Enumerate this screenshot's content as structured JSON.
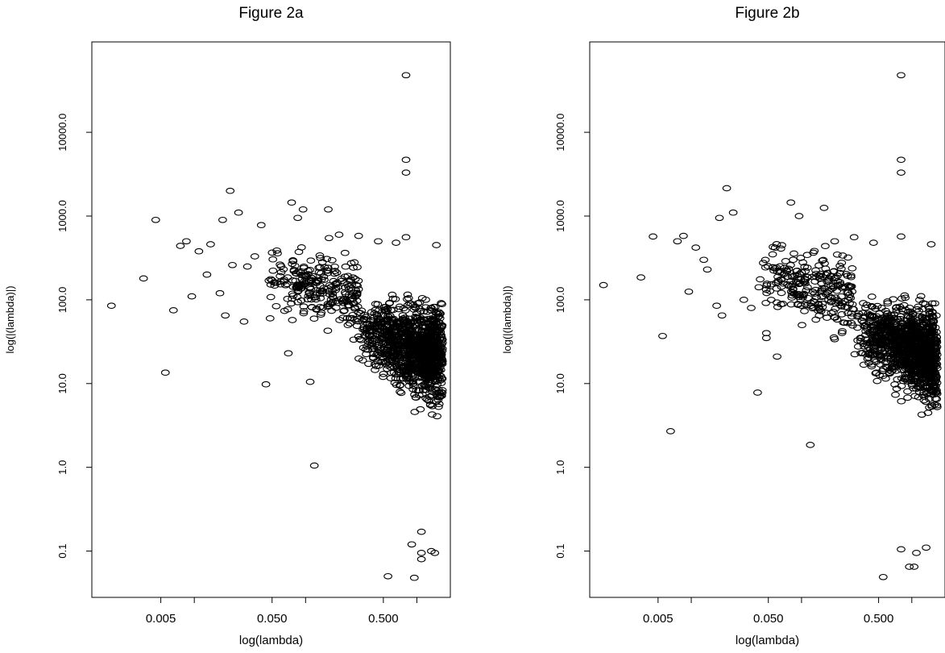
{
  "chart_data": [
    {
      "type": "scatter",
      "title": "Figure 2a",
      "xlabel": "log(lambda)",
      "ylabel": "log(|(lambda)|)",
      "xscale": "log",
      "yscale": "log",
      "xlim": [
        0.0012,
        2.0
      ],
      "ylim": [
        0.028,
        120000
      ],
      "xticks": [
        0.001,
        0.005,
        0.01,
        0.05,
        0.1,
        0.5,
        1.0
      ],
      "xtick_labels": [
        {
          "value": 0.005,
          "label": "0.005"
        },
        {
          "value": 0.05,
          "label": "0.050"
        },
        {
          "value": 0.5,
          "label": "0.500"
        }
      ],
      "yticks": [
        {
          "value": 0.1,
          "label": "0.1"
        },
        {
          "value": 1,
          "label": "1.0"
        },
        {
          "value": 10,
          "label": "10.0"
        },
        {
          "value": 100,
          "label": "100.0"
        },
        {
          "value": 1000,
          "label": "1000.0"
        },
        {
          "value": 10000,
          "label": "10000.0"
        }
      ],
      "grid": false,
      "marker": "open-circle",
      "highlighted_points": [
        {
          "x": 0.0018,
          "y": 85
        },
        {
          "x": 0.0035,
          "y": 180
        },
        {
          "x": 0.0045,
          "y": 900
        },
        {
          "x": 0.0055,
          "y": 13.5
        },
        {
          "x": 0.0065,
          "y": 75
        },
        {
          "x": 0.0075,
          "y": 440
        },
        {
          "x": 0.0085,
          "y": 500
        },
        {
          "x": 0.0095,
          "y": 110
        },
        {
          "x": 0.011,
          "y": 380
        },
        {
          "x": 0.013,
          "y": 200
        },
        {
          "x": 0.014,
          "y": 460
        },
        {
          "x": 0.017,
          "y": 120
        },
        {
          "x": 0.018,
          "y": 900
        },
        {
          "x": 0.019,
          "y": 65
        },
        {
          "x": 0.021,
          "y": 2000
        },
        {
          "x": 0.022,
          "y": 260
        },
        {
          "x": 0.025,
          "y": 1100
        },
        {
          "x": 0.028,
          "y": 55
        },
        {
          "x": 0.03,
          "y": 250
        },
        {
          "x": 0.035,
          "y": 330
        },
        {
          "x": 0.04,
          "y": 780
        },
        {
          "x": 0.044,
          "y": 9.8
        },
        {
          "x": 0.048,
          "y": 60
        },
        {
          "x": 0.055,
          "y": 160
        },
        {
          "x": 0.07,
          "y": 23
        },
        {
          "x": 0.075,
          "y": 1450
        },
        {
          "x": 0.085,
          "y": 950
        },
        {
          "x": 0.095,
          "y": 1200
        },
        {
          "x": 0.11,
          "y": 10.5
        },
        {
          "x": 0.12,
          "y": 1.05
        },
        {
          "x": 0.16,
          "y": 1200
        },
        {
          "x": 0.2,
          "y": 600
        },
        {
          "x": 0.3,
          "y": 580
        },
        {
          "x": 0.45,
          "y": 500
        },
        {
          "x": 0.55,
          "y": 0.05
        },
        {
          "x": 0.65,
          "y": 480
        },
        {
          "x": 0.8,
          "y": 48000
        },
        {
          "x": 0.8,
          "y": 4700
        },
        {
          "x": 0.8,
          "y": 3300
        },
        {
          "x": 0.8,
          "y": 560
        },
        {
          "x": 0.95,
          "y": 0.048
        },
        {
          "x": 1.1,
          "y": 0.08
        },
        {
          "x": 1.1,
          "y": 0.095
        },
        {
          "x": 1.35,
          "y": 0.1
        },
        {
          "x": 1.45,
          "y": 0.095
        },
        {
          "x": 1.5,
          "y": 450
        },
        {
          "x": 1.1,
          "y": 0.17
        },
        {
          "x": 0.9,
          "y": 0.12
        }
      ],
      "dense_cloud": [
        {
          "x_range": [
            0.04,
            0.3
          ],
          "y_range": [
            1.5,
            900
          ],
          "density": "moderate"
        },
        {
          "x_range": [
            0.3,
            1.7
          ],
          "y_range": [
            0.3,
            500
          ],
          "density": "very high"
        }
      ]
    },
    {
      "type": "scatter",
      "title": "Figure 2b",
      "xlabel": "log(lambda)",
      "ylabel": "log(|(lambda)|)",
      "xscale": "log",
      "yscale": "log",
      "xlim": [
        0.0012,
        2.0
      ],
      "ylim": [
        0.028,
        120000
      ],
      "xticks": [
        0.001,
        0.005,
        0.01,
        0.05,
        0.1,
        0.5,
        1.0
      ],
      "xtick_labels": [
        {
          "value": 0.005,
          "label": "0.005"
        },
        {
          "value": 0.05,
          "label": "0.050"
        },
        {
          "value": 0.5,
          "label": "0.500"
        }
      ],
      "yticks": [
        {
          "value": 0.1,
          "label": "0.1"
        },
        {
          "value": 1,
          "label": "1.0"
        },
        {
          "value": 10,
          "label": "10.0"
        },
        {
          "value": 100,
          "label": "100.0"
        },
        {
          "value": 1000,
          "label": "1000.0"
        },
        {
          "value": 10000,
          "label": "10000.0"
        }
      ],
      "grid": false,
      "marker": "open-circle",
      "highlighted_points": [
        {
          "x": 0.0016,
          "y": 150
        },
        {
          "x": 0.0035,
          "y": 185
        },
        {
          "x": 0.0045,
          "y": 570
        },
        {
          "x": 0.0055,
          "y": 37
        },
        {
          "x": 0.0065,
          "y": 2.7
        },
        {
          "x": 0.0075,
          "y": 500
        },
        {
          "x": 0.0085,
          "y": 580
        },
        {
          "x": 0.0095,
          "y": 125
        },
        {
          "x": 0.011,
          "y": 420
        },
        {
          "x": 0.013,
          "y": 300
        },
        {
          "x": 0.014,
          "y": 230
        },
        {
          "x": 0.017,
          "y": 85
        },
        {
          "x": 0.018,
          "y": 950
        },
        {
          "x": 0.019,
          "y": 65
        },
        {
          "x": 0.021,
          "y": 2150
        },
        {
          "x": 0.024,
          "y": 1100
        },
        {
          "x": 0.03,
          "y": 100
        },
        {
          "x": 0.035,
          "y": 80
        },
        {
          "x": 0.04,
          "y": 7.8
        },
        {
          "x": 0.048,
          "y": 40
        },
        {
          "x": 0.048,
          "y": 35
        },
        {
          "x": 0.06,
          "y": 21
        },
        {
          "x": 0.08,
          "y": 1450
        },
        {
          "x": 0.095,
          "y": 1000
        },
        {
          "x": 0.12,
          "y": 1.85
        },
        {
          "x": 0.16,
          "y": 1250
        },
        {
          "x": 0.2,
          "y": 500
        },
        {
          "x": 0.3,
          "y": 560
        },
        {
          "x": 0.45,
          "y": 480
        },
        {
          "x": 0.55,
          "y": 0.049
        },
        {
          "x": 0.8,
          "y": 48000
        },
        {
          "x": 0.8,
          "y": 4700
        },
        {
          "x": 0.8,
          "y": 3300
        },
        {
          "x": 0.8,
          "y": 570
        },
        {
          "x": 0.8,
          "y": 0.105
        },
        {
          "x": 0.95,
          "y": 0.065
        },
        {
          "x": 1.05,
          "y": 0.065
        },
        {
          "x": 1.1,
          "y": 0.095
        },
        {
          "x": 1.35,
          "y": 0.11
        },
        {
          "x": 1.5,
          "y": 460
        }
      ],
      "dense_cloud": [
        {
          "x_range": [
            0.04,
            0.3
          ],
          "y_range": [
            1.5,
            900
          ],
          "density": "moderate"
        },
        {
          "x_range": [
            0.3,
            1.7
          ],
          "y_range": [
            0.2,
            500
          ],
          "density": "very high"
        }
      ]
    }
  ]
}
